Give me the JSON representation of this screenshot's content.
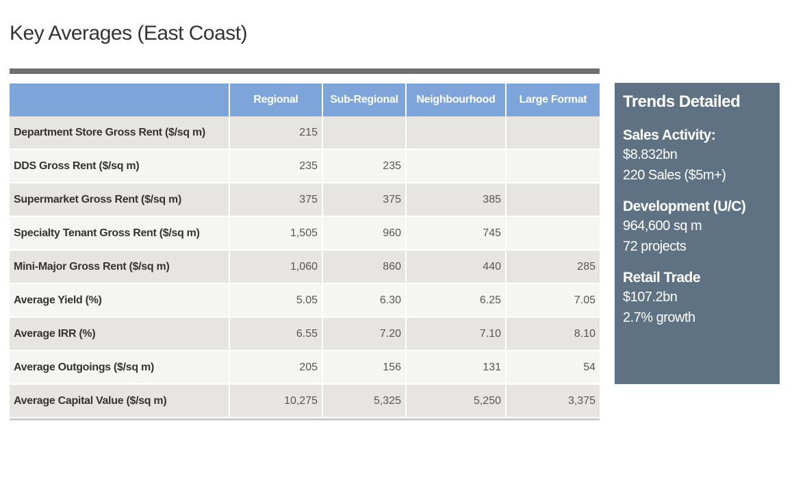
{
  "title": "Key Averages (East Coast)",
  "chart_data": {
    "type": "table",
    "columns": [
      "",
      "Regional",
      "Sub-Regional",
      "Neighbourhood",
      "Large Format"
    ],
    "rows": [
      {
        "label": "Department Store Gross Rent ($/sq m)",
        "values": [
          "215",
          "",
          "",
          ""
        ]
      },
      {
        "label": "DDS Gross Rent ($/sq m)",
        "values": [
          "235",
          "235",
          "",
          ""
        ]
      },
      {
        "label": "Supermarket Gross Rent ($/sq m)",
        "values": [
          "375",
          "375",
          "385",
          ""
        ]
      },
      {
        "label": "Specialty Tenant Gross Rent ($/sq m)",
        "values": [
          "1,505",
          "960",
          "745",
          ""
        ]
      },
      {
        "label": "Mini-Major Gross Rent ($/sq m)",
        "values": [
          "1,060",
          "860",
          "440",
          "285"
        ]
      },
      {
        "label": "Average Yield (%)",
        "values": [
          "5.05",
          "6.30",
          "6.25",
          "7.05"
        ]
      },
      {
        "label": "Average IRR (%)",
        "values": [
          "6.55",
          "7.20",
          "7.10",
          "8.10"
        ]
      },
      {
        "label": "Average Outgoings ($/sq m)",
        "values": [
          "205",
          "156",
          "131",
          "54"
        ]
      },
      {
        "label": "Average Capital Value ($/sq m)",
        "values": [
          "10,275",
          "5,325",
          "5,250",
          "3,375"
        ]
      }
    ]
  },
  "panel": {
    "title": "Trends Detailed",
    "sections": [
      {
        "heading": "Sales Activity:",
        "lines": [
          "$8.832bn",
          "220 Sales ($5m+)"
        ]
      },
      {
        "heading": "Development (U/C)",
        "lines": [
          "964,600 sq m",
          "72 projects"
        ]
      },
      {
        "heading": "Retail Trade",
        "lines": [
          "$107.2bn",
          "2.7% growth"
        ]
      }
    ]
  },
  "colors": {
    "header_blue": "#7ea5d9",
    "panel_slate": "#5f7284",
    "row_dark": "#e6e5e1",
    "row_light": "#f5f5f3",
    "rule_gray": "#6e6e6e"
  }
}
